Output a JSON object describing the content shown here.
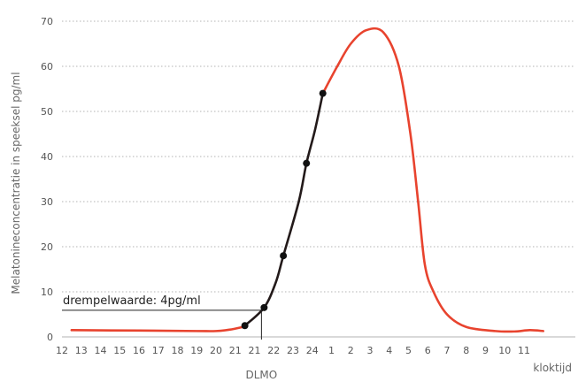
{
  "chart_data": {
    "type": "line",
    "title": "",
    "ylabel": "Melatonineconcentratie in speeksel  pg/ml",
    "xlabel": "kloktijd",
    "ylim": [
      0,
      70
    ],
    "yticks": [
      0,
      10,
      20,
      30,
      40,
      50,
      60,
      70
    ],
    "grid": true,
    "xtick_labels": [
      "12",
      "13",
      "14",
      "15",
      "16",
      "17",
      "18",
      "19",
      "20",
      "21",
      "21",
      "22",
      "23",
      "24",
      "1",
      "2",
      "3",
      "4",
      "5",
      "6",
      "7",
      "8",
      "9",
      "10",
      "11"
    ],
    "threshold": {
      "label": "drempelwaarde: 4pg/ml",
      "value": 4
    },
    "dlmo_label": "DLMO",
    "series": [
      {
        "role": "daytime-curve",
        "color": "#e8432e",
        "points": [
          {
            "x": 0.5,
            "y": 1.5
          },
          {
            "x": 4,
            "y": 1.4
          },
          {
            "x": 7,
            "y": 1.3
          },
          {
            "x": 8,
            "y": 1.3
          },
          {
            "x": 8.7,
            "y": 1.6
          },
          {
            "x": 9.5,
            "y": 2.3
          }
        ]
      },
      {
        "role": "rise-segment",
        "color": "#231a1a",
        "points": [
          {
            "x": 9.5,
            "y": 2.5
          },
          {
            "x": 10.5,
            "y": 6.5
          },
          {
            "x": 11.1,
            "y": 12
          },
          {
            "x": 11.5,
            "y": 18
          },
          {
            "x": 12.3,
            "y": 30
          },
          {
            "x": 12.7,
            "y": 38.5
          },
          {
            "x": 13.15,
            "y": 46
          },
          {
            "x": 13.55,
            "y": 54
          }
        ]
      },
      {
        "role": "night-curve",
        "color": "#e8432e",
        "points": [
          {
            "x": 13.55,
            "y": 54
          },
          {
            "x": 14.3,
            "y": 60
          },
          {
            "x": 15,
            "y": 65
          },
          {
            "x": 15.8,
            "y": 68
          },
          {
            "x": 16.7,
            "y": 67.5
          },
          {
            "x": 17.5,
            "y": 60
          },
          {
            "x": 18.1,
            "y": 45
          },
          {
            "x": 18.5,
            "y": 30
          },
          {
            "x": 18.85,
            "y": 16
          },
          {
            "x": 19.3,
            "y": 10
          },
          {
            "x": 20,
            "y": 5
          },
          {
            "x": 21,
            "y": 2.2
          },
          {
            "x": 22.5,
            "y": 1.3
          },
          {
            "x": 23.5,
            "y": 1.2
          },
          {
            "x": 24.3,
            "y": 1.5
          },
          {
            "x": 25,
            "y": 1.3
          }
        ]
      }
    ],
    "markers": [
      {
        "x": 9.5,
        "y": 2.5
      },
      {
        "x": 10.5,
        "y": 6.5
      },
      {
        "x": 11.5,
        "y": 18
      },
      {
        "x": 12.7,
        "y": 38.5
      },
      {
        "x": 13.55,
        "y": 54
      }
    ]
  }
}
